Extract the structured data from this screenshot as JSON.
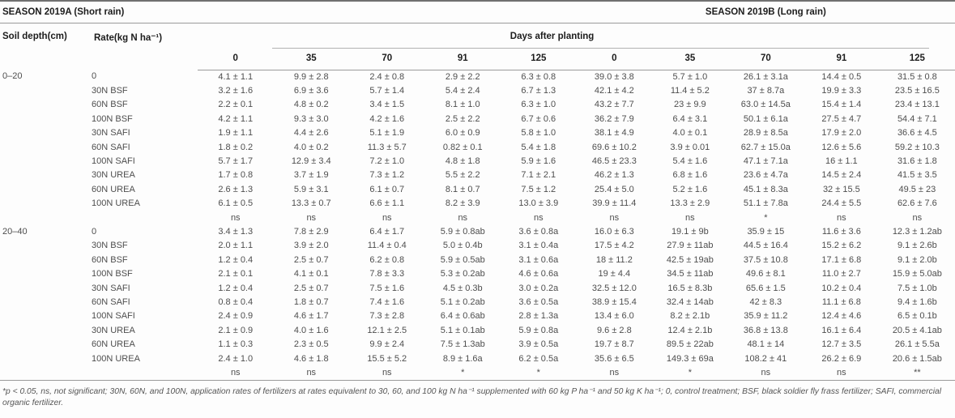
{
  "seasons": {
    "a": "SEASON 2019A (Short rain)",
    "b": "SEASON 2019B (Long rain)"
  },
  "headers": {
    "soil_depth": "Soil depth(cm)",
    "rate": "Rate(kg N ha⁻¹)",
    "spanner": "Days after planting",
    "days": [
      "0",
      "35",
      "70",
      "91",
      "125",
      "0",
      "35",
      "70",
      "91",
      "125"
    ]
  },
  "sections": [
    {
      "depth": "0–20",
      "rows": [
        {
          "rate": "0",
          "values": [
            "4.1 ± 1.1",
            "9.9 ± 2.8",
            "2.4 ± 0.8",
            "2.9 ± 2.2",
            "6.3 ± 0.8",
            "39.0 ± 3.8",
            "5.7 ± 1.0",
            "26.1 ± 3.1a",
            "14.4 ± 0.5",
            "31.5 ± 0.8"
          ]
        },
        {
          "rate": "30N BSF",
          "values": [
            "3.2 ± 1.6",
            "6.9 ± 3.6",
            "5.7 ± 1.4",
            "5.4 ± 2.4",
            "6.7 ± 1.3",
            "42.1 ± 4.2",
            "11.4 ± 5.2",
            "37 ± 8.7a",
            "19.9 ± 3.3",
            "23.5 ± 16.5"
          ]
        },
        {
          "rate": "60N BSF",
          "values": [
            "2.2 ± 0.1",
            "4.8 ± 0.2",
            "3.4 ± 1.5",
            "8.1 ± 1.0",
            "6.3 ± 1.0",
            "43.2 ± 7.7",
            "23 ± 9.9",
            "63.0 ± 14.5a",
            "15.4 ± 1.4",
            "23.4 ± 13.1"
          ]
        },
        {
          "rate": "100N BSF",
          "values": [
            "4.2 ± 1.1",
            "9.3 ± 3.0",
            "4.2 ± 1.6",
            "2.5 ± 2.2",
            "6.7 ± 0.6",
            "36.2 ± 7.9",
            "6.4 ± 3.1",
            "50.1 ± 6.1a",
            "27.5 ± 4.7",
            "54.4 ± 7.1"
          ]
        },
        {
          "rate": "30N SAFI",
          "values": [
            "1.9 ± 1.1",
            "4.4 ± 2.6",
            "5.1 ± 1.9",
            "6.0 ± 0.9",
            "5.8 ± 1.0",
            "38.1 ± 4.9",
            "4.0 ± 0.1",
            "28.9 ± 8.5a",
            "17.9 ± 2.0",
            "36.6 ± 4.5"
          ]
        },
        {
          "rate": "60N SAFI",
          "values": [
            "1.8 ± 0.2",
            "4.0 ± 0.2",
            "11.3 ± 5.7",
            "0.82 ± 0.1",
            "5.4 ± 1.8",
            "69.6 ± 10.2",
            "3.9 ± 0.01",
            "62.7 ± 15.0a",
            "12.6 ± 5.6",
            "59.2 ± 10.3"
          ]
        },
        {
          "rate": "100N SAFI",
          "values": [
            "5.7 ± 1.7",
            "12.9 ± 3.4",
            "7.2 ± 1.0",
            "4.8 ± 1.8",
            "5.9 ± 1.6",
            "46.5 ± 23.3",
            "5.4 ± 1.6",
            "47.1 ± 7.1a",
            "16 ± 1.1",
            "31.6 ± 1.8"
          ]
        },
        {
          "rate": "30N UREA",
          "values": [
            "1.7 ± 0.8",
            "3.7 ± 1.9",
            "7.3 ± 1.2",
            "5.5 ± 2.2",
            "7.1 ± 2.1",
            "46.2 ± 1.3",
            "6.8 ± 1.6",
            "23.6 ± 4.7a",
            "14.5 ± 2.4",
            "41.5 ± 3.5"
          ]
        },
        {
          "rate": "60N UREA",
          "values": [
            "2.6 ± 1.3",
            "5.9 ± 3.1",
            "6.1 ± 0.7",
            "8.1 ± 0.7",
            "7.5 ± 1.2",
            "25.4 ± 5.0",
            "5.2 ± 1.6",
            "45.1 ± 8.3a",
            "32 ± 15.5",
            "49.5 ± 23"
          ]
        },
        {
          "rate": "100N UREA",
          "values": [
            "6.1 ± 0.5",
            "13.3 ± 0.7",
            "6.6 ± 1.1",
            "8.2 ± 3.9",
            "13.0 ± 3.9",
            "39.9 ± 11.4",
            "13.3 ± 2.9",
            "51.1 ± 7.8a",
            "24.4 ± 5.5",
            "62.6 ± 7.6"
          ]
        }
      ],
      "sig": [
        "ns",
        "ns",
        "ns",
        "ns",
        "ns",
        "ns",
        "ns",
        "*",
        "ns",
        "ns"
      ]
    },
    {
      "depth": "20–40",
      "rows": [
        {
          "rate": "0",
          "values": [
            "3.4 ± 1.3",
            "7.8 ± 2.9",
            "6.4 ± 1.7",
            "5.9 ± 0.8ab",
            "3.6 ± 0.8a",
            "16.0 ± 6.3",
            "19.1 ± 9b",
            "35.9 ± 15",
            "11.6 ± 3.6",
            "12.3 ± 1.2ab"
          ]
        },
        {
          "rate": "30N BSF",
          "values": [
            "2.0 ± 1.1",
            "3.9 ± 2.0",
            "11.4 ± 0.4",
            "5.0 ± 0.4b",
            "3.1 ± 0.4a",
            "17.5 ± 4.2",
            "27.9 ± 11ab",
            "44.5 ± 16.4",
            "15.2 ± 6.2",
            "9.1 ± 2.6b"
          ]
        },
        {
          "rate": "60N BSF",
          "values": [
            "1.2 ± 0.4",
            "2.5 ± 0.7",
            "6.2 ± 0.8",
            "5.9 ± 0.5ab",
            "3.1 ± 0.6a",
            "18 ± 11.2",
            "42.5 ± 19ab",
            "37.5 ± 10.8",
            "17.1 ± 6.8",
            "9.1 ± 2.0b"
          ]
        },
        {
          "rate": "100N BSF",
          "values": [
            "2.1 ± 0.1",
            "4.1 ± 0.1",
            "7.8 ± 3.3",
            "5.3 ± 0.2ab",
            "4.6 ± 0.6a",
            "19 ± 4.4",
            "34.5 ± 11ab",
            "49.6 ± 8.1",
            "11.0 ± 2.7",
            "15.9 ± 5.0ab"
          ]
        },
        {
          "rate": "30N SAFI",
          "values": [
            "1.2 ± 0.4",
            "2.5 ± 0.7",
            "7.5 ± 1.6",
            "4.5 ± 0.3b",
            "3.0 ± 0.2a",
            "32.5 ± 12.0",
            "16.5 ± 8.3b",
            "65.6 ± 1.5",
            "10.2 ± 0.4",
            "7.5 ± 1.0b"
          ]
        },
        {
          "rate": "60N SAFI",
          "values": [
            "0.8 ± 0.4",
            "1.8 ± 0.7",
            "7.4 ± 1.6",
            "5.1 ± 0.2ab",
            "3.6 ± 0.5a",
            "38.9 ± 15.4",
            "32.4 ± 14ab",
            "42 ± 8.3",
            "11.1 ± 6.8",
            "9.4 ± 1.6b"
          ]
        },
        {
          "rate": "100N SAFI",
          "values": [
            "2.4 ± 0.9",
            "4.6 ± 1.7",
            "7.3 ± 2.8",
            "6.4 ± 0.6ab",
            "2.8 ± 1.3a",
            "13.4 ± 6.0",
            "8.2 ± 2.1b",
            "35.9 ± 11.2",
            "12.4 ± 4.6",
            "6.5 ± 0.1b"
          ]
        },
        {
          "rate": "30N UREA",
          "values": [
            "2.1 ± 0.9",
            "4.0 ± 1.6",
            "12.1 ± 2.5",
            "5.1 ± 0.1ab",
            "5.9 ± 0.8a",
            "9.6 ± 2.8",
            "12.4 ± 2.1b",
            "36.8 ± 13.8",
            "16.1 ± 6.4",
            "20.5 ± 4.1ab"
          ]
        },
        {
          "rate": "60N UREA",
          "values": [
            "1.1 ± 0.3",
            "2.3 ± 0.5",
            "9.9 ± 2.4",
            "7.5 ± 1.3ab",
            "3.9 ± 0.5a",
            "19.7 ± 8.7",
            "89.5 ± 22ab",
            "48.1 ± 14",
            "12.7 ± 3.5",
            "26.1 ± 5.5a"
          ]
        },
        {
          "rate": "100N UREA",
          "values": [
            "2.4 ± 1.0",
            "4.6 ± 1.8",
            "15.5 ± 5.2",
            "8.9 ± 1.6a",
            "6.2 ± 0.5a",
            "35.6 ± 6.5",
            "149.3 ± 69a",
            "108.2 ± 41",
            "26.2 ± 6.9",
            "20.6 ± 1.5ab"
          ]
        }
      ],
      "sig": [
        "ns",
        "ns",
        "ns",
        "*",
        "*",
        "ns",
        "*",
        "ns",
        "ns",
        "**"
      ]
    }
  ],
  "footnote": "*p < 0.05, ns, not significant; 30N, 60N, and 100N, application rates of fertilizers at rates equivalent to 30, 60, and 100 kg N ha⁻¹ supplemented with 60 kg P ha⁻¹ and 50 kg K ha⁻¹; 0, control treatment; BSF, black soldier fly frass fertilizer; SAFI, commercial organic fertilizer."
}
